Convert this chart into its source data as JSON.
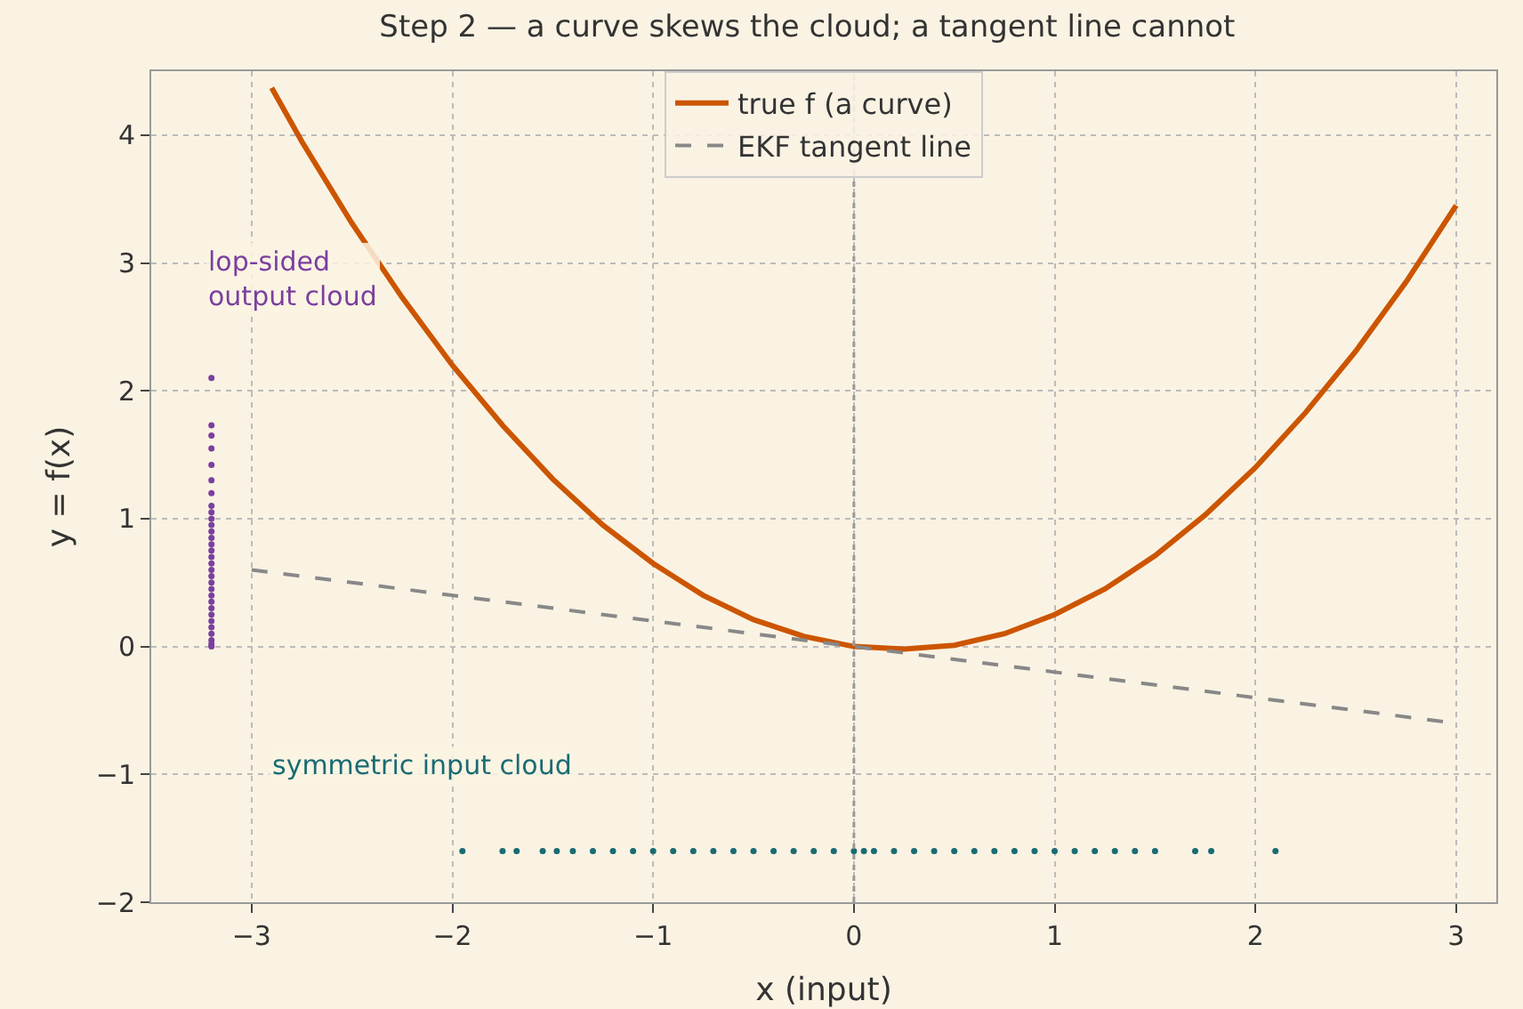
{
  "chart_data": {
    "type": "line",
    "title": "Step 2 — a curve skews the cloud; a tangent line cannot",
    "xlabel": "x (input)",
    "ylabel": "y = f(x)",
    "xlim": [
      -3.5,
      3.2
    ],
    "xticks": [
      {
        "value": -3,
        "label": "−3"
      },
      {
        "value": -2,
        "label": "−2"
      },
      {
        "value": -1,
        "label": "−1"
      },
      0,
      1,
      2,
      3
    ],
    "ylim": [
      -2,
      4.5
    ],
    "yticks": [
      {
        "value": -2,
        "label": "−2"
      },
      {
        "value": -1,
        "label": "−1"
      },
      0,
      1,
      2,
      3,
      4
    ],
    "grid": true,
    "legend": "top",
    "ref_lines": [
      {
        "axis": "x",
        "value": 0,
        "color": "#999999",
        "line_style": "dotted"
      }
    ],
    "annotations": [
      "lop-sided\noutput cloud",
      "symmetric input cloud"
    ],
    "series": [
      {
        "name": "true f (a curve)",
        "color": "#cc5500",
        "line_style": "solid",
        "x": [
          -2.9,
          -2.75,
          -2.5,
          -2.25,
          -2,
          -1.75,
          -1.5,
          -1.25,
          -1,
          -0.75,
          -0.5,
          -0.25,
          0,
          0.25,
          0.5,
          0.75,
          1,
          1.25,
          1.5,
          1.75,
          2,
          2.25,
          2.5,
          2.75,
          3
        ],
        "values": [
          4.37,
          3.95,
          3.31,
          2.73,
          2.2,
          1.73,
          1.31,
          0.95,
          0.65,
          0.4,
          0.21,
          0.08,
          0,
          -0.02,
          0.01,
          0.1,
          0.25,
          0.45,
          0.71,
          1.03,
          1.4,
          1.83,
          2.31,
          2.85,
          3.45
        ]
      },
      {
        "name": "EKF tangent line",
        "color": "#888888",
        "line_style": "dashed",
        "x": [
          -3,
          3
        ],
        "values": [
          0.6,
          -0.6
        ]
      },
      {
        "type": "scatter",
        "color": "#1a6b73",
        "x": [
          -1.95,
          -1.75,
          -1.68,
          -1.55,
          -1.48,
          -1.4,
          -1.3,
          -1.2,
          -1.1,
          -1.0,
          -0.9,
          -0.8,
          -0.7,
          -0.6,
          -0.5,
          -0.4,
          -0.3,
          -0.2,
          -0.1,
          0,
          0.05,
          0.1,
          0.2,
          0.3,
          0.4,
          0.5,
          0.6,
          0.7,
          0.8,
          0.9,
          1.0,
          1.1,
          1.2,
          1.3,
          1.4,
          1.5,
          1.7,
          1.78,
          2.1
        ],
        "values": [
          -1.6,
          -1.6,
          -1.6,
          -1.6,
          -1.6,
          -1.6,
          -1.6,
          -1.6,
          -1.6,
          -1.6,
          -1.6,
          -1.6,
          -1.6,
          -1.6,
          -1.6,
          -1.6,
          -1.6,
          -1.6,
          -1.6,
          -1.6,
          -1.6,
          -1.6,
          -1.6,
          -1.6,
          -1.6,
          -1.6,
          -1.6,
          -1.6,
          -1.6,
          -1.6,
          -1.6,
          -1.6,
          -1.6,
          -1.6,
          -1.6,
          -1.6,
          -1.6,
          -1.6,
          -1.6
        ]
      },
      {
        "type": "scatter",
        "color": "#7b3fa0",
        "x": [
          -3.2,
          -3.2,
          -3.2,
          -3.2,
          -3.2,
          -3.2,
          -3.2,
          -3.2,
          -3.2,
          -3.2,
          -3.2,
          -3.2,
          -3.2,
          -3.2,
          -3.2,
          -3.2,
          -3.2,
          -3.2,
          -3.2,
          -3.2,
          -3.2,
          -3.2,
          -3.2,
          -3.2,
          -3.2,
          -3.2,
          -3.2,
          -3.2,
          -3.2,
          -3.2,
          -3.2
        ],
        "values": [
          0,
          0.02,
          0.05,
          0.1,
          0.15,
          0.2,
          0.25,
          0.3,
          0.35,
          0.4,
          0.45,
          0.5,
          0.55,
          0.6,
          0.65,
          0.7,
          0.75,
          0.8,
          0.85,
          0.9,
          0.95,
          1.0,
          1.05,
          1.1,
          1.2,
          1.3,
          1.42,
          1.55,
          1.65,
          1.73,
          2.1
        ]
      }
    ]
  }
}
